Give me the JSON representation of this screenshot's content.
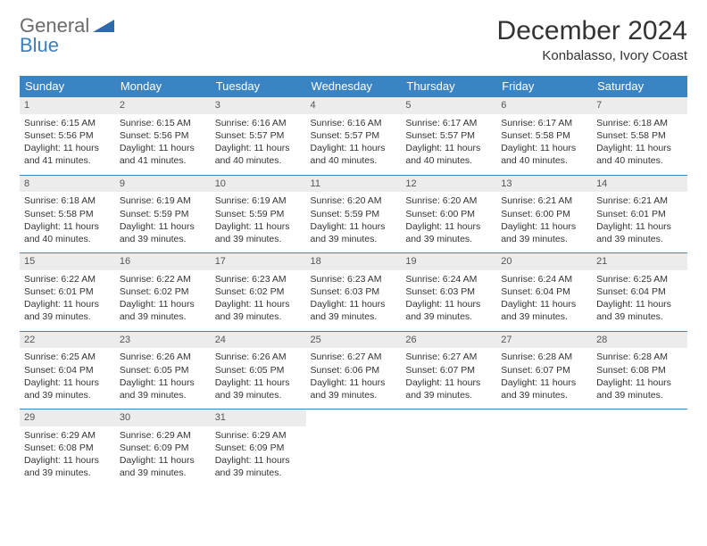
{
  "logo": {
    "line1": "General",
    "line2": "Blue",
    "color_gray": "#6b6b6b",
    "color_blue": "#3a7fc0"
  },
  "title": "December 2024",
  "location": "Konbalasso, Ivory Coast",
  "header_bg": "#3b84c4",
  "daynum_bg": "#ececec",
  "border_color": "#3b84c4",
  "day_headers": [
    "Sunday",
    "Monday",
    "Tuesday",
    "Wednesday",
    "Thursday",
    "Friday",
    "Saturday"
  ],
  "weeks": [
    [
      {
        "num": "1",
        "sunrise": "Sunrise: 6:15 AM",
        "sunset": "Sunset: 5:56 PM",
        "daylight": "Daylight: 11 hours and 41 minutes."
      },
      {
        "num": "2",
        "sunrise": "Sunrise: 6:15 AM",
        "sunset": "Sunset: 5:56 PM",
        "daylight": "Daylight: 11 hours and 41 minutes."
      },
      {
        "num": "3",
        "sunrise": "Sunrise: 6:16 AM",
        "sunset": "Sunset: 5:57 PM",
        "daylight": "Daylight: 11 hours and 40 minutes."
      },
      {
        "num": "4",
        "sunrise": "Sunrise: 6:16 AM",
        "sunset": "Sunset: 5:57 PM",
        "daylight": "Daylight: 11 hours and 40 minutes."
      },
      {
        "num": "5",
        "sunrise": "Sunrise: 6:17 AM",
        "sunset": "Sunset: 5:57 PM",
        "daylight": "Daylight: 11 hours and 40 minutes."
      },
      {
        "num": "6",
        "sunrise": "Sunrise: 6:17 AM",
        "sunset": "Sunset: 5:58 PM",
        "daylight": "Daylight: 11 hours and 40 minutes."
      },
      {
        "num": "7",
        "sunrise": "Sunrise: 6:18 AM",
        "sunset": "Sunset: 5:58 PM",
        "daylight": "Daylight: 11 hours and 40 minutes."
      }
    ],
    [
      {
        "num": "8",
        "sunrise": "Sunrise: 6:18 AM",
        "sunset": "Sunset: 5:58 PM",
        "daylight": "Daylight: 11 hours and 40 minutes."
      },
      {
        "num": "9",
        "sunrise": "Sunrise: 6:19 AM",
        "sunset": "Sunset: 5:59 PM",
        "daylight": "Daylight: 11 hours and 39 minutes."
      },
      {
        "num": "10",
        "sunrise": "Sunrise: 6:19 AM",
        "sunset": "Sunset: 5:59 PM",
        "daylight": "Daylight: 11 hours and 39 minutes."
      },
      {
        "num": "11",
        "sunrise": "Sunrise: 6:20 AM",
        "sunset": "Sunset: 5:59 PM",
        "daylight": "Daylight: 11 hours and 39 minutes."
      },
      {
        "num": "12",
        "sunrise": "Sunrise: 6:20 AM",
        "sunset": "Sunset: 6:00 PM",
        "daylight": "Daylight: 11 hours and 39 minutes."
      },
      {
        "num": "13",
        "sunrise": "Sunrise: 6:21 AM",
        "sunset": "Sunset: 6:00 PM",
        "daylight": "Daylight: 11 hours and 39 minutes."
      },
      {
        "num": "14",
        "sunrise": "Sunrise: 6:21 AM",
        "sunset": "Sunset: 6:01 PM",
        "daylight": "Daylight: 11 hours and 39 minutes."
      }
    ],
    [
      {
        "num": "15",
        "sunrise": "Sunrise: 6:22 AM",
        "sunset": "Sunset: 6:01 PM",
        "daylight": "Daylight: 11 hours and 39 minutes."
      },
      {
        "num": "16",
        "sunrise": "Sunrise: 6:22 AM",
        "sunset": "Sunset: 6:02 PM",
        "daylight": "Daylight: 11 hours and 39 minutes."
      },
      {
        "num": "17",
        "sunrise": "Sunrise: 6:23 AM",
        "sunset": "Sunset: 6:02 PM",
        "daylight": "Daylight: 11 hours and 39 minutes."
      },
      {
        "num": "18",
        "sunrise": "Sunrise: 6:23 AM",
        "sunset": "Sunset: 6:03 PM",
        "daylight": "Daylight: 11 hours and 39 minutes."
      },
      {
        "num": "19",
        "sunrise": "Sunrise: 6:24 AM",
        "sunset": "Sunset: 6:03 PM",
        "daylight": "Daylight: 11 hours and 39 minutes."
      },
      {
        "num": "20",
        "sunrise": "Sunrise: 6:24 AM",
        "sunset": "Sunset: 6:04 PM",
        "daylight": "Daylight: 11 hours and 39 minutes."
      },
      {
        "num": "21",
        "sunrise": "Sunrise: 6:25 AM",
        "sunset": "Sunset: 6:04 PM",
        "daylight": "Daylight: 11 hours and 39 minutes."
      }
    ],
    [
      {
        "num": "22",
        "sunrise": "Sunrise: 6:25 AM",
        "sunset": "Sunset: 6:04 PM",
        "daylight": "Daylight: 11 hours and 39 minutes."
      },
      {
        "num": "23",
        "sunrise": "Sunrise: 6:26 AM",
        "sunset": "Sunset: 6:05 PM",
        "daylight": "Daylight: 11 hours and 39 minutes."
      },
      {
        "num": "24",
        "sunrise": "Sunrise: 6:26 AM",
        "sunset": "Sunset: 6:05 PM",
        "daylight": "Daylight: 11 hours and 39 minutes."
      },
      {
        "num": "25",
        "sunrise": "Sunrise: 6:27 AM",
        "sunset": "Sunset: 6:06 PM",
        "daylight": "Daylight: 11 hours and 39 minutes."
      },
      {
        "num": "26",
        "sunrise": "Sunrise: 6:27 AM",
        "sunset": "Sunset: 6:07 PM",
        "daylight": "Daylight: 11 hours and 39 minutes."
      },
      {
        "num": "27",
        "sunrise": "Sunrise: 6:28 AM",
        "sunset": "Sunset: 6:07 PM",
        "daylight": "Daylight: 11 hours and 39 minutes."
      },
      {
        "num": "28",
        "sunrise": "Sunrise: 6:28 AM",
        "sunset": "Sunset: 6:08 PM",
        "daylight": "Daylight: 11 hours and 39 minutes."
      }
    ],
    [
      {
        "num": "29",
        "sunrise": "Sunrise: 6:29 AM",
        "sunset": "Sunset: 6:08 PM",
        "daylight": "Daylight: 11 hours and 39 minutes."
      },
      {
        "num": "30",
        "sunrise": "Sunrise: 6:29 AM",
        "sunset": "Sunset: 6:09 PM",
        "daylight": "Daylight: 11 hours and 39 minutes."
      },
      {
        "num": "31",
        "sunrise": "Sunrise: 6:29 AM",
        "sunset": "Sunset: 6:09 PM",
        "daylight": "Daylight: 11 hours and 39 minutes."
      },
      null,
      null,
      null,
      null
    ]
  ]
}
